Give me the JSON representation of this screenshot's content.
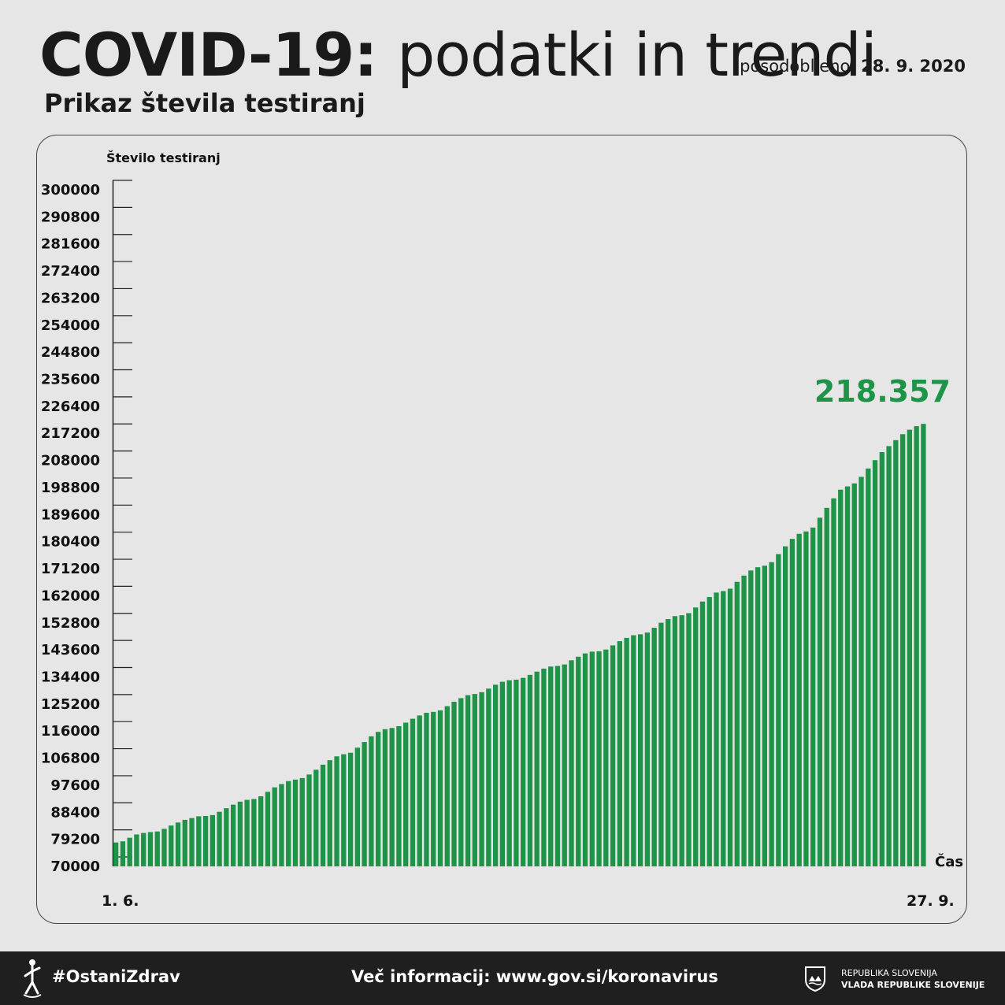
{
  "header": {
    "title_bold": "COVID-19:",
    "title_light": "podatki in trendi",
    "updated_label": "posodobljeno:",
    "updated_date": "28. 9. 2020",
    "subtitle": "Prikaz števila testiranj"
  },
  "chart_data": {
    "type": "bar",
    "title": "",
    "ylabel": "Število testiranj",
    "xlabel": "Čas",
    "ylim": [
      70000,
      300000
    ],
    "yticks": [
      300000,
      290800,
      281600,
      272400,
      263200,
      254000,
      244800,
      235600,
      226400,
      217200,
      208000,
      198800,
      189600,
      180400,
      171200,
      162000,
      152800,
      143600,
      134400,
      125200,
      116000,
      106800,
      97600,
      88400,
      79200,
      70000
    ],
    "x_start_label": "1. 6.",
    "x_end_label": "27. 9.",
    "x_start_date": "2020-06-01",
    "x_end_date": "2020-09-27",
    "last_value_label": "218.357",
    "grid": false,
    "legend": "none",
    "bar_color": "#1d9448",
    "values": [
      78000,
      78400,
      79600,
      80700,
      81200,
      81500,
      81700,
      82600,
      83700,
      84700,
      85600,
      86200,
      86800,
      86900,
      87200,
      88300,
      89500,
      90700,
      91700,
      92300,
      92600,
      93500,
      95000,
      96500,
      97600,
      98600,
      99100,
      99600,
      100800,
      102400,
      104100,
      105600,
      106900,
      107600,
      108100,
      109800,
      111700,
      113600,
      115100,
      116000,
      116400,
      117000,
      118200,
      119500,
      120600,
      121500,
      121800,
      122300,
      123700,
      125200,
      126400,
      127400,
      127800,
      128400,
      129600,
      130900,
      131900,
      132400,
      132600,
      133200,
      134200,
      135300,
      136300,
      137000,
      137200,
      137700,
      139100,
      140300,
      141400,
      142000,
      142100,
      142700,
      144100,
      145500,
      146600,
      147500,
      147800,
      148400,
      150000,
      151700,
      152900,
      153900,
      154200,
      154900,
      156800,
      158800,
      160300,
      161800,
      162300,
      163100,
      165400,
      167500,
      169200,
      170300,
      170800,
      172000,
      174700,
      177300,
      179800,
      181500,
      182300,
      183600,
      186900,
      190200,
      193400,
      196300,
      197400,
      198400,
      200600,
      203400,
      206200,
      208900,
      210900,
      212900,
      214900,
      216400,
      217600,
      218357
    ]
  },
  "footer": {
    "hashtag": "#OstaniZdrav",
    "info": "Več informacij: www.gov.si/koronavirus",
    "gov_line1": "REPUBLIKA SLOVENIJA",
    "gov_line2": "VLADA REPUBLIKE SLOVENIJE"
  }
}
